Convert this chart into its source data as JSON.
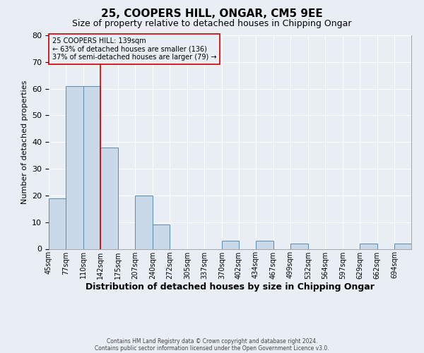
{
  "title1": "25, COOPERS HILL, ONGAR, CM5 9EE",
  "title2": "Size of property relative to detached houses in Chipping Ongar",
  "xlabel": "Distribution of detached houses by size in Chipping Ongar",
  "ylabel": "Number of detached properties",
  "footnote1": "Contains HM Land Registry data © Crown copyright and database right 2024.",
  "footnote2": "Contains public sector information licensed under the Open Government Licence v3.0.",
  "bin_labels": [
    "45sqm",
    "77sqm",
    "110sqm",
    "142sqm",
    "175sqm",
    "207sqm",
    "240sqm",
    "272sqm",
    "305sqm",
    "337sqm",
    "370sqm",
    "402sqm",
    "434sqm",
    "467sqm",
    "499sqm",
    "532sqm",
    "564sqm",
    "597sqm",
    "629sqm",
    "662sqm",
    "694sqm"
  ],
  "bar_values": [
    19,
    61,
    61,
    38,
    0,
    20,
    9,
    0,
    0,
    0,
    3,
    0,
    3,
    0,
    2,
    0,
    0,
    0,
    2,
    0,
    2
  ],
  "bar_color": "#c9d9e8",
  "bar_edge_color": "#5a8ab0",
  "bin_edges": [
    45,
    77,
    110,
    142,
    175,
    207,
    240,
    272,
    305,
    337,
    370,
    402,
    434,
    467,
    499,
    532,
    564,
    597,
    629,
    662,
    694,
    726
  ],
  "property_line_bin": 3,
  "annotation_lines": [
    "25 COOPERS HILL: 139sqm",
    "← 63% of detached houses are smaller (136)",
    "37% of semi-detached houses are larger (79) →"
  ],
  "annotation_box_color": "#cc0000",
  "ylim": [
    0,
    80
  ],
  "yticks": [
    0,
    10,
    20,
    30,
    40,
    50,
    60,
    70,
    80
  ],
  "background_color": "#e8eef4",
  "grid_color": "#ffffff",
  "title1_fontsize": 11,
  "title2_fontsize": 9,
  "xlabel_fontsize": 9,
  "ylabel_fontsize": 8,
  "tick_fontsize": 7,
  "annot_fontsize": 7,
  "footnote_fontsize": 5.5
}
